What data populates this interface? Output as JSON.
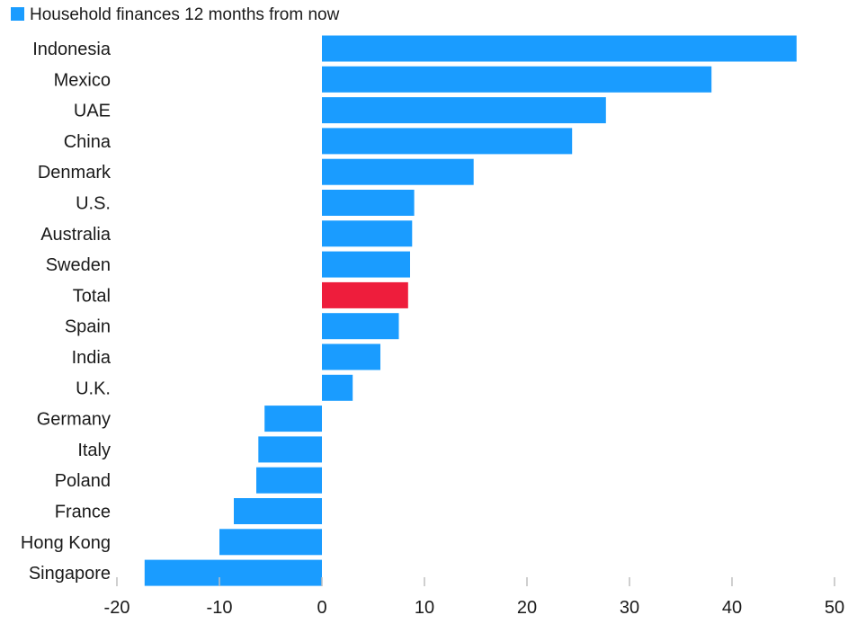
{
  "chart_data": {
    "type": "bar",
    "orientation": "horizontal",
    "legend": {
      "label": "Household finances 12 months from now",
      "position": "top-left"
    },
    "categories": [
      "Indonesia",
      "Mexico",
      "UAE",
      "China",
      "Denmark",
      "U.S.",
      "Australia",
      "Sweden",
      "Total",
      "Spain",
      "India",
      "U.K.",
      "Germany",
      "Italy",
      "Poland",
      "France",
      "Hong Kong",
      "Singapore"
    ],
    "series": [
      {
        "name": "Household finances 12 months from now",
        "values": [
          46.3,
          38.0,
          27.7,
          24.4,
          14.8,
          9.0,
          8.8,
          8.6,
          8.4,
          7.5,
          5.7,
          3.0,
          -5.6,
          -6.2,
          -6.4,
          -8.6,
          -10.0,
          -17.3
        ]
      }
    ],
    "highlight": {
      "category": "Total",
      "color": "#ee1d3c"
    },
    "colors": {
      "bar": "#1a9cff",
      "highlight": "#ee1d3c",
      "axis": "#bfbfbf",
      "text": "#1a1a1a"
    },
    "xlim": [
      -20,
      50
    ],
    "xticks": [
      -20,
      -10,
      0,
      10,
      20,
      30,
      40,
      50
    ],
    "grid": false,
    "title": "",
    "xlabel": "",
    "ylabel": ""
  }
}
